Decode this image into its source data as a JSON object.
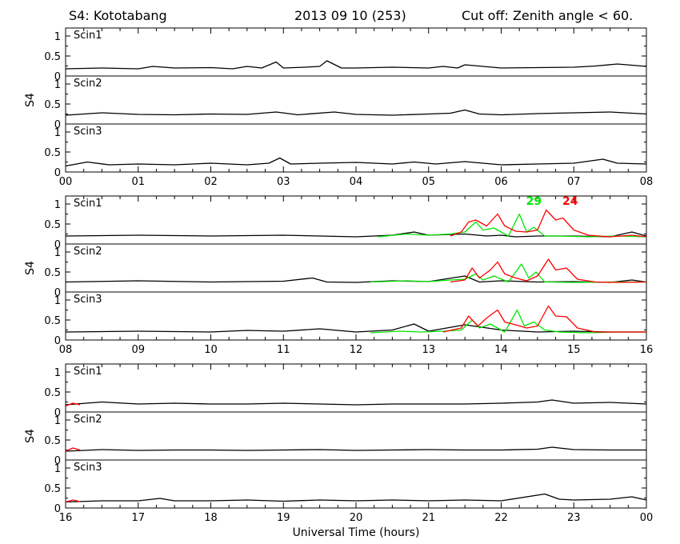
{
  "header": {
    "station": "S4: Kototabang",
    "date": "2013 09 10 (253)",
    "cutoff": "Cut off: Zenith angle < 60."
  },
  "xaxis_title": "Universal Time (hours)",
  "colors": {
    "black": "#000000",
    "red": "#ff0000",
    "green": "#00e600"
  },
  "chart_data": [
    {
      "type": "line",
      "block": "00-08 UT",
      "ylabel": "S4",
      "xlim": [
        0,
        8
      ],
      "ylim": [
        0,
        1.2
      ],
      "x_tick_labels": [
        "00",
        "01",
        "02",
        "03",
        "04",
        "05",
        "06",
        "07",
        "08"
      ],
      "y_tick_labels": [
        "0",
        "0.5",
        "1"
      ],
      "panels": [
        {
          "label": "Scin1",
          "series": [
            {
              "color": "black",
              "x": [
                0,
                0.5,
                1,
                1.2,
                1.5,
                2,
                2.3,
                2.5,
                2.7,
                2.9,
                3.0,
                3.3,
                3.5,
                3.6,
                3.8,
                4,
                4.5,
                5,
                5.2,
                5.4,
                5.5,
                6,
                6.5,
                7,
                7.3,
                7.6,
                7.8,
                8
              ],
              "y": [
                0.18,
                0.2,
                0.18,
                0.24,
                0.2,
                0.21,
                0.18,
                0.24,
                0.2,
                0.35,
                0.2,
                0.22,
                0.24,
                0.38,
                0.2,
                0.2,
                0.22,
                0.2,
                0.24,
                0.2,
                0.28,
                0.2,
                0.21,
                0.22,
                0.25,
                0.3,
                0.27,
                0.24
              ]
            }
          ]
        },
        {
          "label": "Scin2",
          "series": [
            {
              "color": "black",
              "x": [
                0,
                0.5,
                1,
                1.5,
                2,
                2.5,
                2.9,
                3.2,
                3.7,
                4,
                4.5,
                5,
                5.3,
                5.5,
                5.7,
                6,
                6.5,
                7,
                7.5,
                8
              ],
              "y": [
                0.22,
                0.28,
                0.24,
                0.23,
                0.25,
                0.24,
                0.3,
                0.23,
                0.3,
                0.24,
                0.22,
                0.25,
                0.27,
                0.35,
                0.25,
                0.23,
                0.26,
                0.28,
                0.3,
                0.25
              ]
            }
          ]
        },
        {
          "label": "Scin3",
          "series": [
            {
              "color": "black",
              "x": [
                0,
                0.3,
                0.6,
                1,
                1.5,
                2,
                2.5,
                2.8,
                2.95,
                3.1,
                3.5,
                4,
                4.5,
                4.8,
                5.1,
                5.5,
                6,
                6.5,
                7,
                7.4,
                7.6,
                8
              ],
              "y": [
                0.15,
                0.25,
                0.18,
                0.2,
                0.18,
                0.22,
                0.18,
                0.22,
                0.35,
                0.2,
                0.22,
                0.24,
                0.2,
                0.25,
                0.2,
                0.26,
                0.18,
                0.2,
                0.22,
                0.32,
                0.22,
                0.2
              ]
            }
          ]
        }
      ]
    },
    {
      "type": "line",
      "block": "08-16 UT",
      "ylabel": "S4",
      "xlim": [
        8,
        16
      ],
      "ylim": [
        0,
        1.2
      ],
      "x_tick_labels": [
        "08",
        "09",
        "10",
        "11",
        "12",
        "13",
        "14",
        "15",
        "16"
      ],
      "y_tick_labels": [
        "0",
        "0.5",
        "1"
      ],
      "annotations": [
        {
          "text": "29",
          "color": "green",
          "x": 14.45,
          "y": 0.98
        },
        {
          "text": "24",
          "color": "red",
          "x": 14.95,
          "y": 0.98
        }
      ],
      "panels": [
        {
          "label": "Scin1",
          "series": [
            {
              "color": "black",
              "x": [
                8,
                9,
                10,
                11,
                11.5,
                12,
                12.5,
                12.8,
                13,
                13.5,
                13.8,
                14,
                14.2,
                14.5,
                15,
                15.5,
                15.8,
                16
              ],
              "y": [
                0.2,
                0.22,
                0.2,
                0.22,
                0.2,
                0.18,
                0.22,
                0.3,
                0.22,
                0.25,
                0.2,
                0.22,
                0.18,
                0.2,
                0.2,
                0.18,
                0.3,
                0.2
              ]
            },
            {
              "color": "green",
              "x": [
                12.3,
                12.7,
                13.0,
                13.3,
                13.5,
                13.65,
                13.75,
                13.9,
                14.1,
                14.25,
                14.35,
                14.45,
                14.6,
                14.8,
                15.2,
                15.6,
                16
              ],
              "y": [
                0.18,
                0.25,
                0.22,
                0.25,
                0.3,
                0.55,
                0.35,
                0.4,
                0.2,
                0.75,
                0.3,
                0.42,
                0.2,
                0.2,
                0.18,
                0.2,
                0.18
              ]
            },
            {
              "color": "red",
              "x": [
                13.3,
                13.45,
                13.55,
                13.65,
                13.8,
                13.95,
                14.05,
                14.2,
                14.35,
                14.5,
                14.62,
                14.75,
                14.85,
                15.0,
                15.2,
                15.5,
                15.8,
                16
              ],
              "y": [
                0.2,
                0.3,
                0.55,
                0.6,
                0.45,
                0.75,
                0.45,
                0.32,
                0.3,
                0.35,
                0.85,
                0.6,
                0.65,
                0.35,
                0.22,
                0.18,
                0.22,
                0.18
              ]
            }
          ]
        },
        {
          "label": "Scin2",
          "series": [
            {
              "color": "black",
              "x": [
                8,
                9,
                10,
                11,
                11.4,
                11.6,
                12,
                12.5,
                13,
                13.5,
                13.7,
                14,
                14.5,
                15,
                15.5,
                15.8,
                16
              ],
              "y": [
                0.25,
                0.28,
                0.25,
                0.27,
                0.35,
                0.25,
                0.24,
                0.28,
                0.26,
                0.4,
                0.25,
                0.28,
                0.25,
                0.26,
                0.24,
                0.3,
                0.25
              ]
            },
            {
              "color": "green",
              "x": [
                12.2,
                12.7,
                13.0,
                13.3,
                13.5,
                13.65,
                13.75,
                13.9,
                14.1,
                14.28,
                14.38,
                14.48,
                14.6,
                15,
                15.5,
                16
              ],
              "y": [
                0.25,
                0.28,
                0.26,
                0.3,
                0.32,
                0.45,
                0.3,
                0.4,
                0.25,
                0.7,
                0.35,
                0.5,
                0.25,
                0.24,
                0.25,
                0.25
              ]
            },
            {
              "color": "red",
              "x": [
                13.3,
                13.5,
                13.6,
                13.7,
                13.85,
                13.95,
                14.05,
                14.2,
                14.35,
                14.5,
                14.65,
                14.75,
                14.9,
                15.05,
                15.3,
                15.6,
                16
              ],
              "y": [
                0.25,
                0.3,
                0.6,
                0.35,
                0.55,
                0.75,
                0.45,
                0.35,
                0.28,
                0.4,
                0.82,
                0.55,
                0.6,
                0.32,
                0.25,
                0.24,
                0.25
              ]
            }
          ]
        },
        {
          "label": "Scin3",
          "series": [
            {
              "color": "black",
              "x": [
                8,
                9,
                10,
                10.5,
                11,
                11.5,
                12,
                12.5,
                12.8,
                13,
                13.5,
                14,
                14.5,
                15,
                15.5,
                16
              ],
              "y": [
                0.2,
                0.22,
                0.2,
                0.24,
                0.22,
                0.28,
                0.2,
                0.25,
                0.4,
                0.22,
                0.38,
                0.25,
                0.2,
                0.22,
                0.2,
                0.2
              ]
            },
            {
              "color": "green",
              "x": [
                12.2,
                12.6,
                12.9,
                13.2,
                13.45,
                13.6,
                13.7,
                13.85,
                14.05,
                14.22,
                14.32,
                14.45,
                14.6,
                14.8,
                15.2,
                15.6,
                16
              ],
              "y": [
                0.18,
                0.22,
                0.2,
                0.22,
                0.25,
                0.5,
                0.3,
                0.4,
                0.2,
                0.75,
                0.35,
                0.45,
                0.25,
                0.2,
                0.18,
                0.2,
                0.2
              ]
            },
            {
              "color": "red",
              "x": [
                13.2,
                13.45,
                13.55,
                13.68,
                13.8,
                13.95,
                14.05,
                14.2,
                14.35,
                14.5,
                14.65,
                14.75,
                14.9,
                15.05,
                15.3,
                15.7,
                16
              ],
              "y": [
                0.2,
                0.3,
                0.6,
                0.35,
                0.55,
                0.75,
                0.45,
                0.38,
                0.3,
                0.35,
                0.85,
                0.6,
                0.58,
                0.3,
                0.2,
                0.2,
                0.2
              ]
            }
          ]
        }
      ]
    },
    {
      "type": "line",
      "block": "16-24 UT",
      "ylabel": "S4",
      "xlim": [
        16,
        24
      ],
      "ylim": [
        0,
        1.2
      ],
      "x_tick_labels": [
        "16",
        "17",
        "18",
        "19",
        "20",
        "21",
        "22",
        "23",
        "00"
      ],
      "y_tick_labels": [
        "0",
        "0.5",
        "1"
      ],
      "panels": [
        {
          "label": "Scin1",
          "series": [
            {
              "color": "black",
              "x": [
                16,
                16.5,
                17,
                17.5,
                18,
                18.5,
                19,
                19.5,
                20,
                20.5,
                21,
                21.5,
                22,
                22.5,
                22.7,
                23,
                23.5,
                24
              ],
              "y": [
                0.18,
                0.25,
                0.2,
                0.22,
                0.2,
                0.2,
                0.22,
                0.2,
                0.18,
                0.2,
                0.2,
                0.2,
                0.22,
                0.25,
                0.3,
                0.22,
                0.24,
                0.2
              ]
            },
            {
              "color": "red",
              "x": [
                16,
                16.1,
                16.2
              ],
              "y": [
                0.15,
                0.22,
                0.18
              ]
            }
          ]
        },
        {
          "label": "Scin2",
          "series": [
            {
              "color": "black",
              "x": [
                16,
                16.5,
                17,
                17.5,
                18,
                18.5,
                19,
                19.5,
                20,
                20.5,
                21,
                21.5,
                22,
                22.5,
                22.7,
                23,
                23.5,
                24
              ],
              "y": [
                0.22,
                0.26,
                0.24,
                0.25,
                0.25,
                0.24,
                0.25,
                0.26,
                0.24,
                0.25,
                0.26,
                0.25,
                0.25,
                0.27,
                0.32,
                0.26,
                0.25,
                0.25
              ]
            },
            {
              "color": "red",
              "x": [
                16,
                16.1,
                16.2
              ],
              "y": [
                0.22,
                0.3,
                0.25
              ]
            }
          ]
        },
        {
          "label": "Scin3",
          "series": [
            {
              "color": "black",
              "x": [
                16,
                16.5,
                17,
                17.3,
                17.5,
                18,
                18.5,
                19,
                19.5,
                20,
                20.5,
                21,
                21.5,
                22,
                22.6,
                22.8,
                23,
                23.5,
                23.8,
                24
              ],
              "y": [
                0.15,
                0.18,
                0.18,
                0.24,
                0.18,
                0.18,
                0.2,
                0.17,
                0.2,
                0.18,
                0.2,
                0.18,
                0.2,
                0.18,
                0.35,
                0.22,
                0.2,
                0.22,
                0.28,
                0.2
              ]
            },
            {
              "color": "red",
              "x": [
                16,
                16.1,
                16.2
              ],
              "y": [
                0.15,
                0.2,
                0.16
              ]
            }
          ]
        }
      ]
    }
  ]
}
